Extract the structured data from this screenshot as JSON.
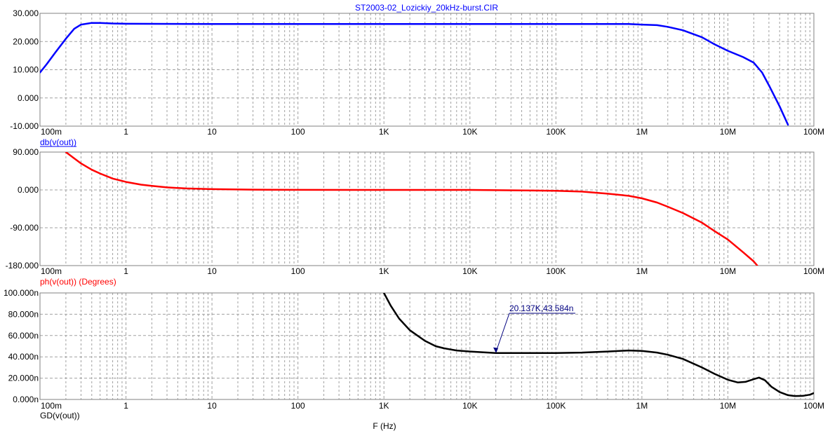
{
  "title": "ST2003-02_Lozickiy_20kHz-burst.CIR",
  "x_axis_label": "F (Hz)",
  "x_tick_labels": [
    "100m",
    "1",
    "10",
    "100",
    "1K",
    "10K",
    "100K",
    "1M",
    "10M",
    "100M"
  ],
  "colors": {
    "db": "#0000ff",
    "phase": "#ff0000",
    "gd": "#000000",
    "title": "#0000ff",
    "grid": "#a0a0a0"
  },
  "chart_data": [
    {
      "type": "line",
      "name": "db(v(out))",
      "x_scale": "log",
      "xlim": [
        0.1,
        100000000
      ],
      "ylim": [
        -10,
        30
      ],
      "y_tick_labels": [
        "30.000",
        "20.000",
        "10.000",
        "0.000",
        "-10.000"
      ],
      "y_ticks": [
        30,
        20,
        10,
        0,
        -10
      ],
      "series_label": "db(v(out))",
      "color": "#0000ff",
      "points": [
        [
          0.1,
          9
        ],
        [
          0.12,
          12
        ],
        [
          0.15,
          16
        ],
        [
          0.2,
          21
        ],
        [
          0.25,
          24.5
        ],
        [
          0.3,
          26
        ],
        [
          0.4,
          26.6
        ],
        [
          0.5,
          26.6
        ],
        [
          0.7,
          26.4
        ],
        [
          1,
          26.3
        ],
        [
          10,
          26.2
        ],
        [
          100,
          26.2
        ],
        [
          1000,
          26.2
        ],
        [
          10000,
          26.2
        ],
        [
          100000,
          26.2
        ],
        [
          700000,
          26.2
        ],
        [
          1000000,
          26
        ],
        [
          1500000,
          25.8
        ],
        [
          2000000,
          25.2
        ],
        [
          3000000,
          24
        ],
        [
          5000000,
          21.5
        ],
        [
          7000000,
          19
        ],
        [
          10000000,
          16.7
        ],
        [
          15000000,
          14.5
        ],
        [
          20000000,
          12.5
        ],
        [
          25000000,
          9
        ],
        [
          30000000,
          4.5
        ],
        [
          40000000,
          -3
        ],
        [
          50000000,
          -9.5
        ]
      ]
    },
    {
      "type": "line",
      "name": "ph(v(out)) (Degrees)",
      "x_scale": "log",
      "xlim": [
        0.1,
        100000000
      ],
      "ylim": [
        -180,
        90
      ],
      "y_tick_labels": [
        "90.000",
        "0.000",
        "-90.000",
        "-180.000"
      ],
      "y_ticks": [
        90,
        0,
        -90,
        -180
      ],
      "series_label": "ph(v(out)) (Degrees)",
      "color": "#ff0000",
      "points": [
        [
          0.2,
          90
        ],
        [
          0.25,
          75
        ],
        [
          0.3,
          63
        ],
        [
          0.4,
          48
        ],
        [
          0.5,
          39
        ],
        [
          0.7,
          27
        ],
        [
          1,
          19
        ],
        [
          1.5,
          12.5
        ],
        [
          2,
          9.5
        ],
        [
          3,
          6
        ],
        [
          5,
          3.5
        ],
        [
          10,
          1.8
        ],
        [
          30,
          0.6
        ],
        [
          100,
          0.2
        ],
        [
          1000,
          0
        ],
        [
          10000,
          0
        ],
        [
          100000,
          -2
        ],
        [
          200000,
          -4
        ],
        [
          400000,
          -9
        ],
        [
          700000,
          -14
        ],
        [
          1000000,
          -20
        ],
        [
          1500000,
          -30
        ],
        [
          2000000,
          -40
        ],
        [
          3000000,
          -55
        ],
        [
          5000000,
          -78
        ],
        [
          7000000,
          -98
        ],
        [
          10000000,
          -118
        ],
        [
          15000000,
          -148
        ],
        [
          20000000,
          -170
        ],
        [
          22000000,
          -180
        ]
      ]
    },
    {
      "type": "line",
      "name": "GD(v(out))",
      "x_scale": "log",
      "xlim": [
        0.1,
        100000000
      ],
      "ylim": [
        0,
        100
      ],
      "y_tick_labels": [
        "100.000n",
        "80.000n",
        "60.000n",
        "40.000n",
        "20.000n",
        "0.000n"
      ],
      "y_ticks": [
        100,
        80,
        60,
        40,
        20,
        0
      ],
      "series_label": "GD(v(out))",
      "color": "#000000",
      "annotation": {
        "text": "20.137K,43.584n",
        "x": 20137,
        "y": 43.584
      },
      "points": [
        [
          1000,
          100
        ],
        [
          1200,
          88
        ],
        [
          1500,
          76
        ],
        [
          2000,
          65
        ],
        [
          3000,
          55
        ],
        [
          4000,
          50
        ],
        [
          5000,
          48
        ],
        [
          7000,
          46
        ],
        [
          10000,
          45
        ],
        [
          20000,
          43.6
        ],
        [
          50000,
          43.6
        ],
        [
          100000,
          43.6
        ],
        [
          200000,
          44
        ],
        [
          400000,
          45
        ],
        [
          700000,
          46
        ],
        [
          1000000,
          45.5
        ],
        [
          1500000,
          44
        ],
        [
          2000000,
          42
        ],
        [
          3000000,
          38
        ],
        [
          5000000,
          30
        ],
        [
          7000000,
          24
        ],
        [
          10000000,
          18.5
        ],
        [
          13000000,
          16
        ],
        [
          16000000,
          16.5
        ],
        [
          20000000,
          19
        ],
        [
          23000000,
          20.5
        ],
        [
          27000000,
          18
        ],
        [
          32000000,
          12
        ],
        [
          40000000,
          7
        ],
        [
          50000000,
          4
        ],
        [
          60000000,
          3.2
        ],
        [
          75000000,
          3.4
        ],
        [
          90000000,
          4.5
        ],
        [
          100000000,
          6
        ]
      ]
    }
  ]
}
